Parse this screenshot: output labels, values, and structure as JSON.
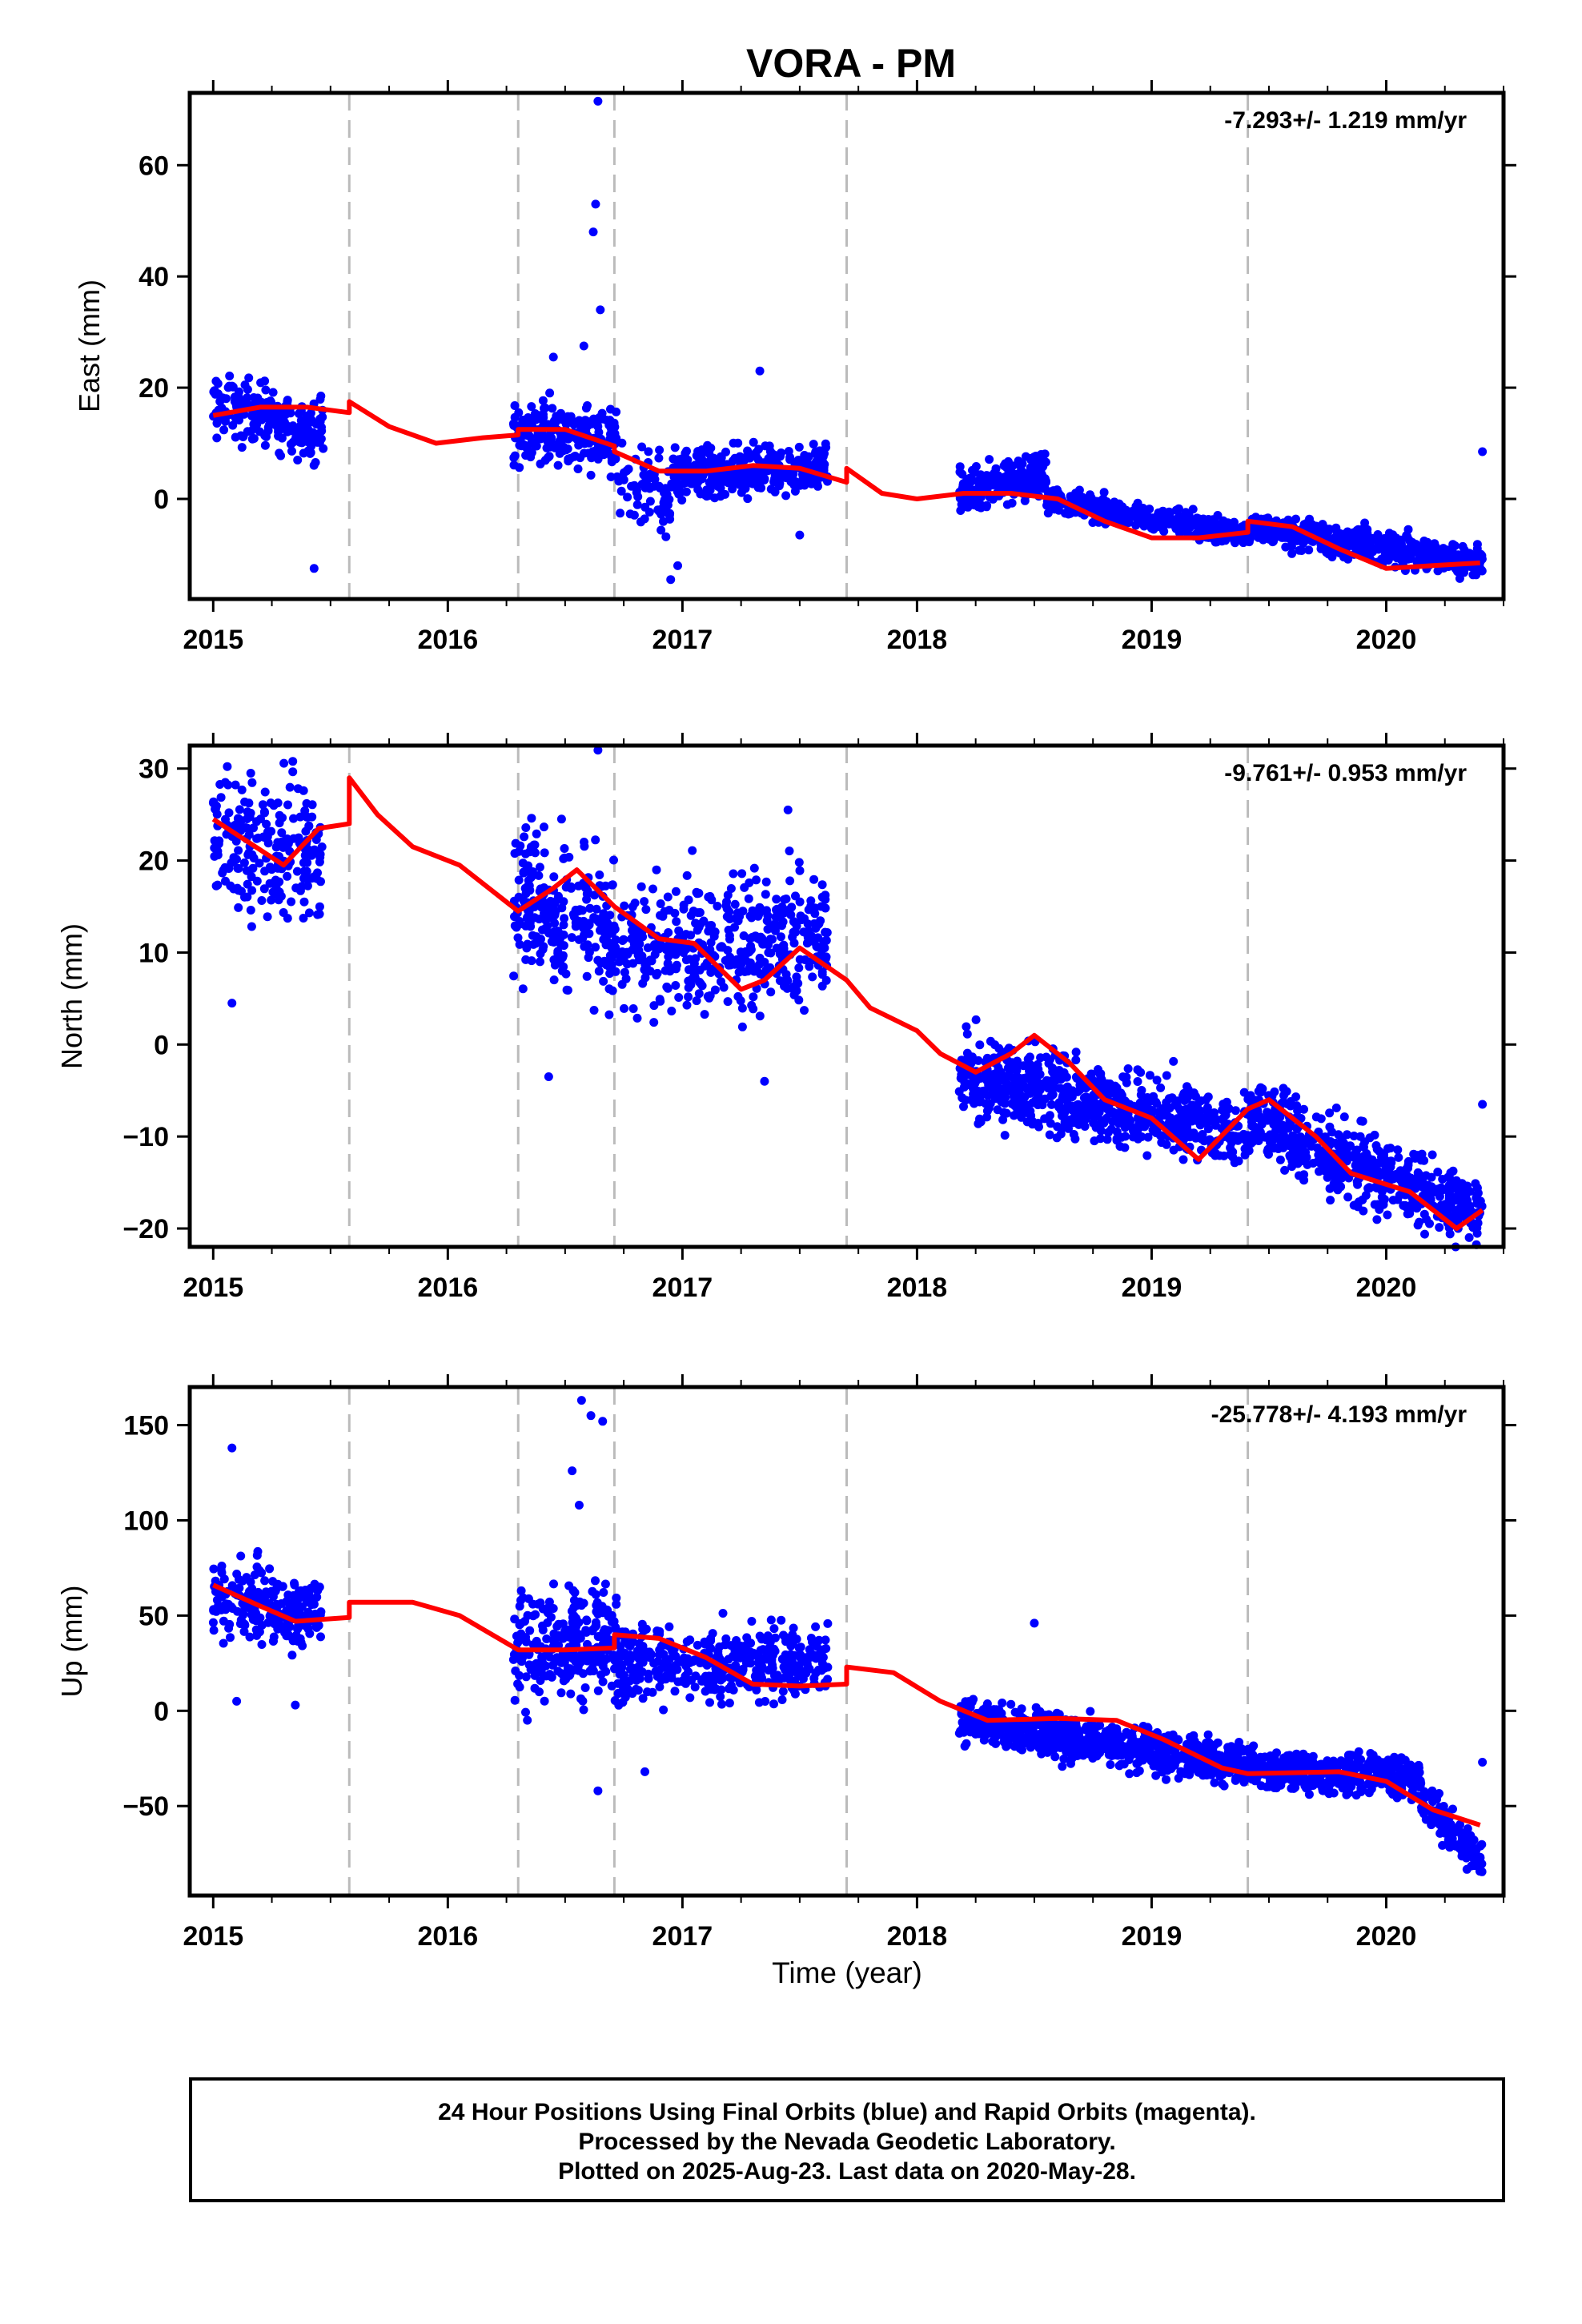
{
  "chart_data": {
    "title": "VORA - PM",
    "type": "scatter",
    "x_ticks": [
      2015,
      2016,
      2017,
      2018,
      2019,
      2020
    ],
    "xlim": [
      2014.9,
      2020.5
    ],
    "xlabel": "Time (year)",
    "discontinuities": [
      2015.58,
      2016.3,
      2016.71,
      2017.7,
      2019.41
    ],
    "colors": {
      "points": "#0000ff",
      "model": "#ff0000",
      "breaks": "#bbbbbb"
    },
    "panels": [
      {
        "ylabel": "East (mm)",
        "ylim": [
          -18,
          73
        ],
        "yticks": [
          0,
          20,
          40,
          60
        ],
        "rate": "-7.293+/- 1.219 mm/yr",
        "model": [
          [
            2015.0,
            15
          ],
          [
            2015.2,
            16.5
          ],
          [
            2015.4,
            16.5
          ],
          [
            2015.58,
            15.5
          ],
          [
            2015.58,
            17.5
          ],
          [
            2015.75,
            13
          ],
          [
            2015.95,
            10
          ],
          [
            2016.15,
            11
          ],
          [
            2016.3,
            11.5
          ],
          [
            2016.3,
            12.5
          ],
          [
            2016.5,
            12.5
          ],
          [
            2016.71,
            9.5
          ],
          [
            2016.71,
            8.5
          ],
          [
            2016.9,
            5
          ],
          [
            2017.1,
            5
          ],
          [
            2017.3,
            6
          ],
          [
            2017.5,
            5.5
          ],
          [
            2017.7,
            3
          ],
          [
            2017.7,
            5.5
          ],
          [
            2017.85,
            1
          ],
          [
            2018.0,
            0
          ],
          [
            2018.2,
            1
          ],
          [
            2018.4,
            1
          ],
          [
            2018.6,
            0
          ],
          [
            2018.8,
            -4
          ],
          [
            2019.0,
            -7
          ],
          [
            2019.2,
            -7
          ],
          [
            2019.41,
            -6
          ],
          [
            2019.41,
            -4
          ],
          [
            2019.6,
            -5
          ],
          [
            2019.8,
            -9
          ],
          [
            2020.0,
            -12.5
          ],
          [
            2020.2,
            -12
          ],
          [
            2020.4,
            -11.5
          ]
        ],
        "segments": [
          {
            "t0": 2015.0,
            "t1": 2015.47,
            "y0": 17,
            "y1": 12,
            "spread": 4,
            "n": 210
          },
          {
            "t0": 2016.28,
            "t1": 2016.72,
            "y0": 12,
            "y1": 11,
            "spread": 4,
            "n": 220
          },
          {
            "t0": 2016.72,
            "t1": 2016.95,
            "y0": 3,
            "y1": 0,
            "spread": 5,
            "n": 70
          },
          {
            "t0": 2016.95,
            "t1": 2017.62,
            "y0": 4,
            "y1": 6,
            "spread": 3,
            "n": 330
          },
          {
            "t0": 2018.18,
            "t1": 2018.55,
            "y0": 1,
            "y1": 5,
            "spread": 3,
            "n": 230
          },
          {
            "t0": 2018.55,
            "t1": 2019.41,
            "y0": 0,
            "y1": -6.5,
            "spread": 1.5,
            "n": 450
          },
          {
            "t0": 2019.41,
            "t1": 2020.41,
            "y0": -5,
            "y1": -11.5,
            "spread": 2,
            "n": 520
          }
        ],
        "outliers": [
          [
            2016.64,
            71.5
          ],
          [
            2016.63,
            53
          ],
          [
            2016.62,
            48
          ],
          [
            2016.65,
            34
          ],
          [
            2016.45,
            25.5
          ],
          [
            2016.58,
            27.5
          ],
          [
            2015.43,
            -12.5
          ],
          [
            2016.95,
            -14.5
          ],
          [
            2016.98,
            -12
          ],
          [
            2017.5,
            -6.5
          ],
          [
            2020.41,
            8.5
          ],
          [
            2017.33,
            23
          ]
        ]
      },
      {
        "ylabel": "North (mm)",
        "ylim": [
          -22,
          32.5
        ],
        "yticks": [
          -20,
          -10,
          0,
          10,
          20,
          30
        ],
        "rate": "-9.761+/- 0.953 mm/yr",
        "model": [
          [
            2015.0,
            24.5
          ],
          [
            2015.15,
            22
          ],
          [
            2015.3,
            19.5
          ],
          [
            2015.45,
            23.5
          ],
          [
            2015.58,
            24
          ],
          [
            2015.58,
            29
          ],
          [
            2015.7,
            25
          ],
          [
            2015.85,
            21.5
          ],
          [
            2016.05,
            19.5
          ],
          [
            2016.3,
            14.5
          ],
          [
            2016.45,
            17
          ],
          [
            2016.55,
            19
          ],
          [
            2016.71,
            15
          ],
          [
            2016.9,
            11.5
          ],
          [
            2017.05,
            11
          ],
          [
            2017.25,
            6
          ],
          [
            2017.35,
            7
          ],
          [
            2017.5,
            10.5
          ],
          [
            2017.7,
            7
          ],
          [
            2017.8,
            4
          ],
          [
            2018.0,
            1.5
          ],
          [
            2018.1,
            -1
          ],
          [
            2018.25,
            -3
          ],
          [
            2018.4,
            -1
          ],
          [
            2018.5,
            1
          ],
          [
            2018.65,
            -2
          ],
          [
            2018.8,
            -6
          ],
          [
            2019.0,
            -8
          ],
          [
            2019.2,
            -12.5
          ],
          [
            2019.41,
            -7
          ],
          [
            2019.5,
            -6
          ],
          [
            2019.7,
            -10
          ],
          [
            2019.85,
            -14
          ],
          [
            2020.1,
            -16
          ],
          [
            2020.3,
            -20
          ],
          [
            2020.41,
            -18
          ]
        ],
        "segments": [
          {
            "t0": 2015.0,
            "t1": 2015.47,
            "y0": 23,
            "y1": 20,
            "spread": 5,
            "n": 230
          },
          {
            "t0": 2016.28,
            "t1": 2016.72,
            "y0": 16,
            "y1": 12,
            "spread": 6,
            "n": 250
          },
          {
            "t0": 2016.72,
            "t1": 2017.62,
            "y0": 10,
            "y1": 12,
            "spread": 5,
            "n": 420
          },
          {
            "t0": 2018.18,
            "t1": 2019.41,
            "y0": -3,
            "y1": -10,
            "spread": 3,
            "n": 700
          },
          {
            "t0": 2019.41,
            "t1": 2020.41,
            "y0": -8,
            "y1": -18.5,
            "spread": 3,
            "n": 550
          }
        ],
        "outliers": [
          [
            2016.64,
            32
          ],
          [
            2016.43,
            -3.5
          ],
          [
            2017.35,
            -4
          ],
          [
            2020.41,
            -6.5
          ],
          [
            2015.08,
            4.5
          ],
          [
            2017.45,
            25.5
          ]
        ]
      },
      {
        "ylabel": "Up (mm)",
        "ylim": [
          -97,
          170
        ],
        "yticks": [
          -50,
          0,
          50,
          100,
          150
        ],
        "rate": "-25.778+/- 4.193 mm/yr",
        "model": [
          [
            2015.0,
            66
          ],
          [
            2015.2,
            55
          ],
          [
            2015.35,
            47
          ],
          [
            2015.58,
            49
          ],
          [
            2015.58,
            57
          ],
          [
            2015.85,
            57
          ],
          [
            2016.05,
            50
          ],
          [
            2016.3,
            32
          ],
          [
            2016.5,
            32
          ],
          [
            2016.71,
            33
          ],
          [
            2016.71,
            40
          ],
          [
            2016.9,
            38
          ],
          [
            2017.1,
            28
          ],
          [
            2017.3,
            14
          ],
          [
            2017.5,
            13
          ],
          [
            2017.7,
            14
          ],
          [
            2017.7,
            23
          ],
          [
            2017.9,
            20
          ],
          [
            2018.1,
            5
          ],
          [
            2018.3,
            -5
          ],
          [
            2018.6,
            -4
          ],
          [
            2018.85,
            -5
          ],
          [
            2019.05,
            -15
          ],
          [
            2019.3,
            -30
          ],
          [
            2019.41,
            -33
          ],
          [
            2019.8,
            -32
          ],
          [
            2020.0,
            -37
          ],
          [
            2020.2,
            -52
          ],
          [
            2020.4,
            -60
          ]
        ],
        "segments": [
          {
            "t0": 2015.0,
            "t1": 2015.47,
            "y0": 60,
            "y1": 50,
            "spread": 14,
            "n": 220
          },
          {
            "t0": 2016.28,
            "t1": 2016.72,
            "y0": 35,
            "y1": 35,
            "spread": 22,
            "n": 250
          },
          {
            "t0": 2016.72,
            "t1": 2017.62,
            "y0": 25,
            "y1": 25,
            "spread": 14,
            "n": 400
          },
          {
            "t0": 2018.18,
            "t1": 2019.41,
            "y0": -5,
            "y1": -28,
            "spread": 8,
            "n": 700
          },
          {
            "t0": 2019.41,
            "t1": 2020.15,
            "y0": -30,
            "y1": -35,
            "spread": 8,
            "n": 420
          },
          {
            "t0": 2020.15,
            "t1": 2020.41,
            "y0": -45,
            "y1": -80,
            "spread": 8,
            "n": 130
          }
        ],
        "outliers": [
          [
            2015.08,
            138
          ],
          [
            2016.57,
            163
          ],
          [
            2016.61,
            155
          ],
          [
            2016.66,
            152
          ],
          [
            2016.53,
            126
          ],
          [
            2016.56,
            108
          ],
          [
            2016.64,
            -42
          ],
          [
            2016.84,
            -32
          ],
          [
            2015.1,
            5
          ],
          [
            2015.35,
            3
          ],
          [
            2020.41,
            -27
          ],
          [
            2018.5,
            46
          ]
        ]
      }
    ],
    "footer": [
      "24 Hour Positions Using Final Orbits (blue) and Rapid Orbits (magenta).",
      "Processed by the Nevada Geodetic Laboratory.",
      "Plotted on 2025-Aug-23. Last data on 2020-May-28."
    ]
  }
}
